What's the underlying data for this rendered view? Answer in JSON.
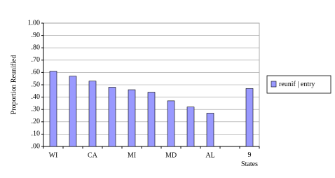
{
  "chart_data": {
    "type": "bar",
    "y_label": "Proportion Reunified",
    "categories": [
      "WI",
      null,
      "CA",
      null,
      "MI",
      null,
      "MD",
      null,
      "AL",
      null,
      "9 States"
    ],
    "series": [
      {
        "name": "reunif | entry",
        "color": "#9999ff",
        "values": [
          0.61,
          0.57,
          0.53,
          0.48,
          0.46,
          0.44,
          0.37,
          0.32,
          0.27,
          null,
          0.47
        ]
      }
    ],
    "ylim": [
      0,
      1
    ],
    "yticks": [
      {
        "value": 0,
        "label": ".00"
      },
      {
        "value": 0.1,
        "label": ".10"
      },
      {
        "value": 0.2,
        "label": ".20"
      },
      {
        "value": 0.3,
        "label": ".30"
      },
      {
        "value": 0.4,
        "label": ".40"
      },
      {
        "value": 0.5,
        "label": ".50"
      },
      {
        "value": 0.6,
        "label": ".60"
      },
      {
        "value": 0.7,
        "label": ".70"
      },
      {
        "value": 0.8,
        "label": ".80"
      },
      {
        "value": 0.9,
        "label": ".90"
      },
      {
        "value": 1,
        "label": "1.00"
      }
    ],
    "grid": true,
    "legend": "right"
  }
}
